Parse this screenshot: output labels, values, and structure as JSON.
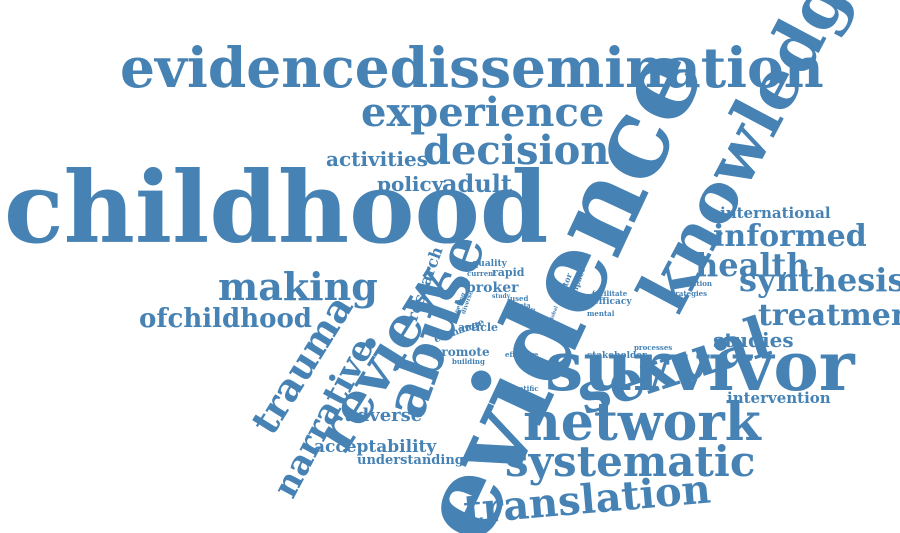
{
  "cloud": {
    "color": "#4682b4",
    "words": [
      "evidencedissemination",
      "experience",
      "decision",
      "activities",
      "policy",
      "adult",
      "childhood",
      "knowledge",
      "evidence",
      "international",
      "informed",
      "health",
      "synthesis",
      "making",
      "review",
      "abuse",
      "sexual",
      "ofchildhood",
      "trauma",
      "treatment",
      "survivor",
      "studies",
      "narrative",
      "adverse",
      "network",
      "intervention",
      "acceptability",
      "understanding",
      "systematic",
      "translation",
      "research",
      "quality",
      "current",
      "rapid",
      "broker",
      "study",
      "used",
      "asia",
      "result",
      "need",
      "sector",
      "impact",
      "facilitate",
      "evaluation",
      "strategies",
      "efficacy",
      "mental",
      "article",
      "exchange",
      "promote",
      "building",
      "meeting",
      "diverse",
      "effective",
      "stakeholder",
      "processes",
      "scientific",
      "global",
      "asian"
    ]
  }
}
